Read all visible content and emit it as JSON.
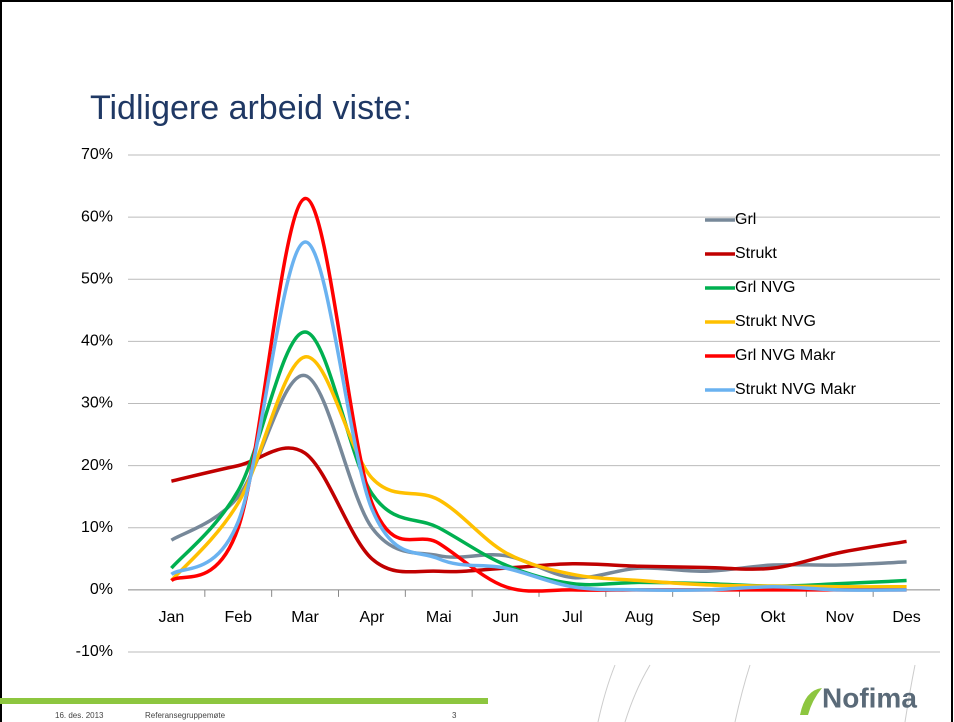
{
  "chart_data": {
    "type": "line",
    "title": "Tidligere arbeid viste:",
    "categories": [
      "Jan",
      "Feb",
      "Mar",
      "Apr",
      "Mai",
      "Jun",
      "Jul",
      "Aug",
      "Sep",
      "Okt",
      "Nov",
      "Des"
    ],
    "ylim": [
      -10,
      70
    ],
    "yticks": [
      {
        "value": -10,
        "label": "-10%"
      },
      {
        "value": 0,
        "label": "0%"
      },
      {
        "value": 10,
        "label": "10%"
      },
      {
        "value": 20,
        "label": "20%"
      },
      {
        "value": 30,
        "label": "30%"
      },
      {
        "value": 40,
        "label": "40%"
      },
      {
        "value": 50,
        "label": "50%"
      },
      {
        "value": 60,
        "label": "60%"
      },
      {
        "value": 70,
        "label": "70%"
      }
    ],
    "grid": true,
    "smooth": true,
    "legend": "upper right",
    "series": [
      {
        "name": "Grl",
        "color": "#778899",
        "values": [
          8,
          15,
          34.5,
          10,
          5.5,
          5.5,
          2,
          3.5,
          3,
          4,
          4,
          4.5
        ]
      },
      {
        "name": "Strukt",
        "color": "#c00000",
        "values": [
          17.5,
          20,
          22,
          5,
          3,
          3.5,
          4.2,
          3.8,
          3.6,
          3.5,
          6,
          7.8
        ]
      },
      {
        "name": "Grl NVG",
        "color": "#00b050",
        "values": [
          3.5,
          16,
          41.5,
          15.5,
          10,
          4,
          1,
          1.2,
          1,
          0.6,
          1,
          1.5
        ]
      },
      {
        "name": "Strukt NVG",
        "color": "#ffc000",
        "values": [
          1.5,
          14,
          37.5,
          18,
          14.5,
          6,
          2.5,
          1.5,
          0.8,
          0.6,
          0.5,
          0.5
        ]
      },
      {
        "name": "Grl NVG Makr",
        "color": "#ff0000",
        "values": [
          1.5,
          10,
          63,
          14,
          7.5,
          0.5,
          0,
          0,
          0,
          0,
          0,
          0
        ]
      },
      {
        "name": "Strukt NVG Makr",
        "color": "#6ab2f0",
        "values": [
          2.5,
          11,
          56,
          13,
          5,
          3.5,
          0.5,
          0,
          0,
          0.5,
          0,
          0
        ]
      }
    ]
  },
  "footer": {
    "date": "16. des. 2013",
    "title": "Referansegruppemøte",
    "page": "3"
  },
  "logo": "Nofima"
}
